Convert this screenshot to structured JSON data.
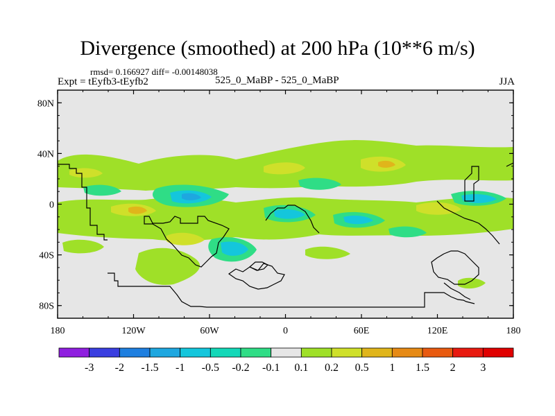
{
  "title": "Divergence (smoothed) at 200 hPa (10**6 m/s)",
  "stats_text": "rmsd= 0.166927 diff= -0.00148038",
  "experiment_text": "Expt = tEyfb3-tEyfb2",
  "case_text": "525_0_MaBP - 525_0_MaBP",
  "season": "JJA",
  "colors": {
    "background_field": "#e6e6e6",
    "coastline": "#000000"
  },
  "map": {
    "lat_ticks": [
      "80N",
      "40N",
      "0",
      "40S",
      "80S"
    ],
    "lon_ticks": [
      "180",
      "120W",
      "60W",
      "0",
      "60E",
      "120E",
      "180"
    ]
  },
  "colorbar": {
    "labels": [
      "-3",
      "-2",
      "-1.5",
      "-1",
      "-0.5",
      "-0.2",
      "-0.1",
      "0.1",
      "0.2",
      "0.5",
      "1",
      "1.5",
      "2",
      "3"
    ],
    "colors": [
      "#8f1fdf",
      "#3a3ee0",
      "#1e7fe0",
      "#1ea7e0",
      "#14c6dc",
      "#13d8b8",
      "#2fdd86",
      "#e6e6e6",
      "#9fe028",
      "#cfe02a",
      "#e0b51b",
      "#e68a15",
      "#e85a10",
      "#e81a10",
      "#e00000"
    ]
  }
}
